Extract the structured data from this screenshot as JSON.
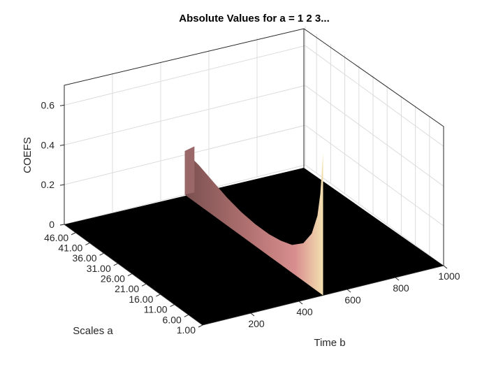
{
  "chart_data": {
    "type": "surface",
    "title": "Absolute Values for a =  1 2 3...",
    "xlabel": "Time b",
    "ylabel": "Scales a",
    "zlabel": "COEFS",
    "xlim": [
      0,
      1000
    ],
    "ylim": [
      1,
      50
    ],
    "zlim": [
      0,
      0.7
    ],
    "x_ticks": [
      200,
      400,
      600,
      800,
      1000
    ],
    "y_ticks": [
      "1.00",
      "6.00",
      "11.00",
      "16.00",
      "21.00",
      "26.00",
      "31.00",
      "36.00",
      "41.00",
      "46.00"
    ],
    "z_ticks": [
      0,
      0.2,
      0.4,
      0.6
    ],
    "z_tick_labels": [
      "0",
      "0.2",
      "0.4",
      "0.6"
    ],
    "grid": true,
    "colormap": [
      "#000000",
      "#5a3a3a",
      "#b87878",
      "#e6a8a8",
      "#ffffc8"
    ],
    "ridge": {
      "x_position": 500,
      "edge_profile": [
        {
          "a": 1,
          "coef": 0.72
        },
        {
          "a": 2,
          "coef": 0.5
        },
        {
          "a": 3,
          "coef": 0.38
        },
        {
          "a": 5,
          "coef": 0.27
        },
        {
          "a": 8,
          "coef": 0.19
        },
        {
          "a": 12,
          "coef": 0.14
        },
        {
          "a": 16,
          "coef": 0.12
        },
        {
          "a": 20,
          "coef": 0.11
        },
        {
          "a": 25,
          "coef": 0.11
        },
        {
          "a": 30,
          "coef": 0.12
        },
        {
          "a": 35,
          "coef": 0.14
        },
        {
          "a": 40,
          "coef": 0.17
        },
        {
          "a": 45,
          "coef": 0.2
        },
        {
          "a": 50,
          "coef": 0.22
        }
      ]
    }
  }
}
